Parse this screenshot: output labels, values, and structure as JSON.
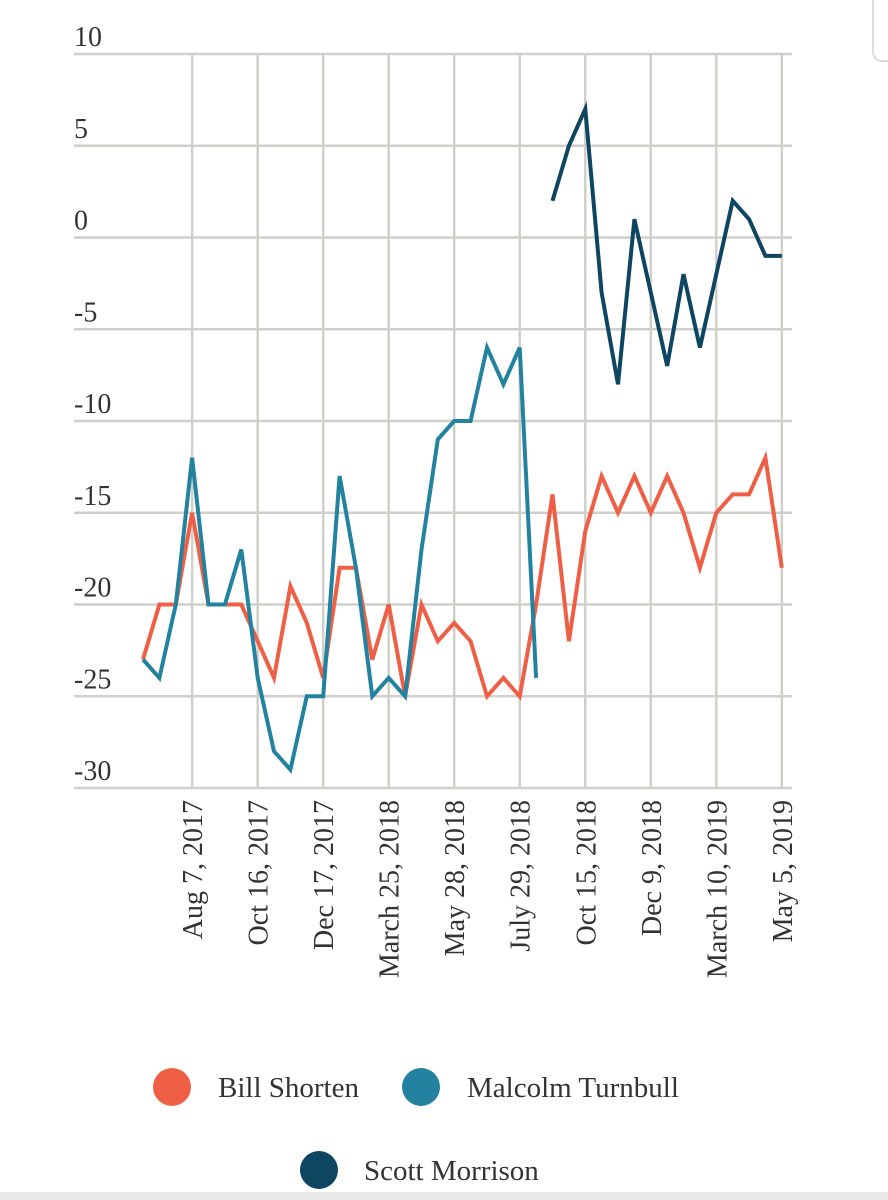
{
  "chart_data": {
    "type": "line",
    "title": "",
    "xlabel": "",
    "ylabel": "",
    "ylim": [
      -30,
      10
    ],
    "yticks": [
      10,
      5,
      0,
      -5,
      -10,
      -15,
      -20,
      -25,
      -30
    ],
    "ytick_labels": [
      "10",
      "5",
      "0",
      "-5",
      "-10",
      "-15",
      "-20",
      "-25",
      "-30"
    ],
    "x_count": 40,
    "xticks": [
      {
        "index": 3,
        "label": "Aug 7, 2017"
      },
      {
        "index": 7,
        "label": "Oct 16, 2017"
      },
      {
        "index": 11,
        "label": "Dec 17, 2017"
      },
      {
        "index": 15,
        "label": "March 25, 2018"
      },
      {
        "index": 19,
        "label": "May 28, 2018"
      },
      {
        "index": 23,
        "label": "July 29, 2018"
      },
      {
        "index": 27,
        "label": "Oct 15, 2018"
      },
      {
        "index": 31,
        "label": "Dec 9, 2018"
      },
      {
        "index": 35,
        "label": "March 10, 2019"
      },
      {
        "index": 39,
        "label": "May 5, 2019"
      }
    ],
    "series": [
      {
        "name": "Bill Shorten",
        "color": "#ee5f45",
        "values": [
          -23,
          -20,
          -20,
          -15,
          -20,
          -20,
          -20,
          -22,
          -24,
          -19,
          -21,
          -24,
          -18,
          -18,
          -23,
          -20,
          -25,
          -20,
          -22,
          -21,
          -22,
          -25,
          -24,
          -25,
          -20,
          -14,
          -22,
          -16,
          -13,
          -15,
          -13,
          -15,
          -13,
          -15,
          -18,
          -15,
          -14,
          -14,
          -12,
          -18
        ]
      },
      {
        "name": "Malcolm Turnbull",
        "color": "#23829f",
        "values": [
          -23,
          -24,
          -20,
          -12,
          -20,
          -20,
          -17,
          -24,
          -28,
          -29,
          -25,
          -25,
          -13,
          -18,
          -25,
          -24,
          -25,
          -17,
          -11,
          -10,
          -10,
          -6,
          -8,
          -6,
          -24,
          null,
          null,
          null,
          null,
          null,
          null,
          null,
          null,
          null,
          null,
          null,
          null,
          null,
          null,
          null
        ]
      },
      {
        "name": "Scott Morrison",
        "color": "#0e4560",
        "values": [
          null,
          null,
          null,
          null,
          null,
          null,
          null,
          null,
          null,
          null,
          null,
          null,
          null,
          null,
          null,
          null,
          null,
          null,
          null,
          null,
          null,
          null,
          null,
          null,
          null,
          2,
          5,
          7,
          -3,
          -8,
          1,
          -3,
          -7,
          -2,
          -6,
          -2,
          2,
          1,
          -1,
          -1
        ]
      }
    ],
    "legend": [
      {
        "label": "Bill Shorten",
        "color": "#ee5f45"
      },
      {
        "label": "Malcolm Turnbull",
        "color": "#23829f"
      },
      {
        "label": "Scott Morrison",
        "color": "#0e4560"
      }
    ],
    "grid": true,
    "legend_position": "bottom"
  }
}
